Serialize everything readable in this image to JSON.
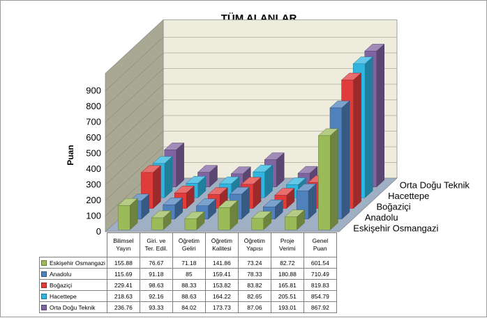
{
  "chart_data": {
    "type": "bar",
    "title": "TÜM ALANLAR",
    "ylabel": "Puan",
    "ylim": [
      0,
      900
    ],
    "yticks": [
      0,
      100,
      200,
      300,
      400,
      500,
      600,
      700,
      800,
      900
    ],
    "categories": [
      [
        "Bilimsel",
        "Yayın"
      ],
      [
        "Giri. ve",
        "Ter. Edil."
      ],
      [
        "Öğretim",
        "Geliri"
      ],
      [
        "Öğretim",
        "Kalitesi"
      ],
      [
        "Öğretim",
        "Yapısı"
      ],
      [
        "Proje",
        "Verimi"
      ],
      [
        "Genel",
        "Puan"
      ]
    ],
    "series": [
      {
        "name": "Eskişehir Osmangazi",
        "color": "#9bbb59",
        "values": [
          155.88,
          76.67,
          71.18,
          141.86,
          73.24,
          82.72,
          601.54
        ]
      },
      {
        "name": "Anadolu",
        "color": "#4f81bd",
        "values": [
          115.69,
          91.18,
          85,
          159.41,
          78.33,
          180.88,
          710.49
        ]
      },
      {
        "name": "Boğaziçi",
        "color": "#e03c3c",
        "values": [
          229.41,
          98.63,
          88.33,
          153.82,
          83.82,
          165.81,
          819.83
        ]
      },
      {
        "name": "Hacettepe",
        "color": "#2fb5e0",
        "values": [
          218.63,
          92.16,
          88.63,
          164.22,
          82.65,
          205.51,
          854.79
        ]
      },
      {
        "name": "Orta Doğu Teknik",
        "color": "#8064a2",
        "values": [
          236.76,
          93.33,
          84.02,
          173.73,
          87.06,
          193.01,
          867.92
        ]
      }
    ],
    "table_values": [
      [
        "155.88",
        "76.67",
        "71.18",
        "141.86",
        "73.24",
        "82.72",
        "601.54"
      ],
      [
        "115.69",
        "91.18",
        "85",
        "159.41",
        "78.33",
        "180.88",
        "710.49"
      ],
      [
        "229.41",
        "98.63",
        "88.33",
        "153.82",
        "83.82",
        "165.81",
        "819.83"
      ],
      [
        "218.63",
        "92.16",
        "88.63",
        "164.22",
        "82.65",
        "205.51",
        "854.79"
      ],
      [
        "236.76",
        "93.33",
        "84.02",
        "173.73",
        "87.06",
        "193.01",
        "867.92"
      ]
    ],
    "grid": true,
    "legend": "data-table"
  }
}
